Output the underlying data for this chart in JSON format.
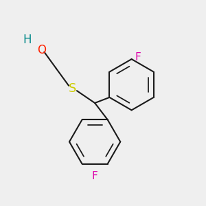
{
  "bg_color": "#efefef",
  "bond_color": "#1a1a1a",
  "bond_width": 1.5,
  "S_color": "#cccc00",
  "O_color": "#ff2200",
  "H_color": "#008888",
  "F_color": "#dd00aa",
  "font_size": 11,
  "fig_size": [
    3.0,
    3.0
  ],
  "dpi": 100,
  "xlim": [
    0,
    10
  ],
  "ylim": [
    0,
    10
  ]
}
